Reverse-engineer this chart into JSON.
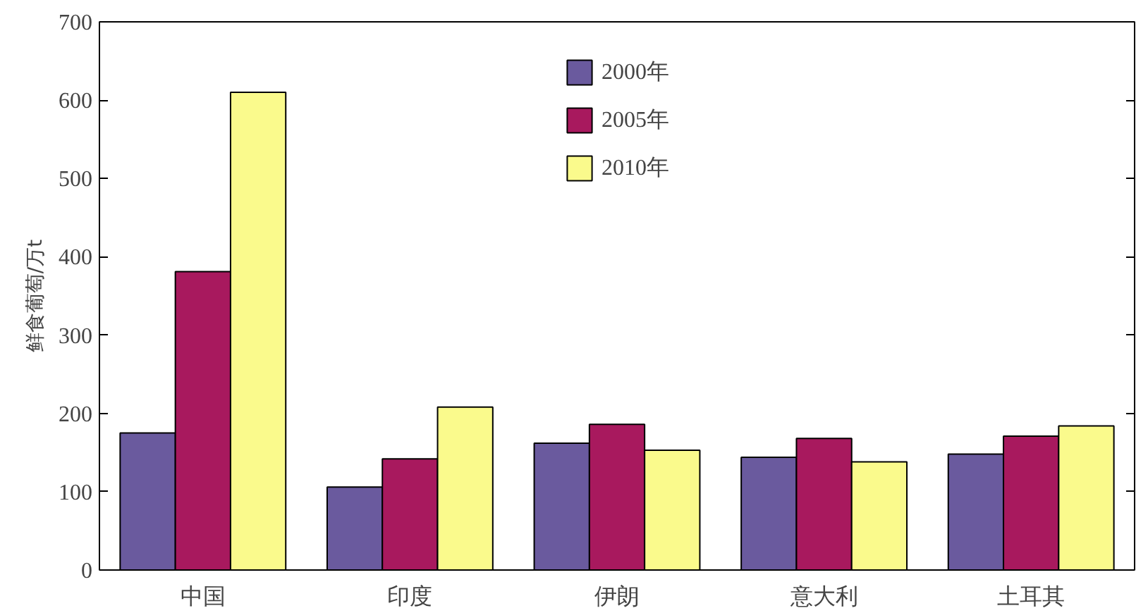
{
  "chart_data": {
    "type": "bar",
    "ylabel": "鲜食葡萄/万t",
    "categories": [
      "中国",
      "印度",
      "伊朗",
      "意大利",
      "土耳其"
    ],
    "series": [
      {
        "name": "2000年",
        "color": "#6a5a9e",
        "values": [
          175,
          106,
          162,
          144,
          148
        ]
      },
      {
        "name": "2005年",
        "color": "#a8195e",
        "values": [
          381,
          142,
          186,
          168,
          171
        ]
      },
      {
        "name": "2010年",
        "color": "#fafa8c",
        "values": [
          610,
          208,
          153,
          138,
          184
        ]
      }
    ],
    "ylim": [
      0,
      700
    ],
    "yticks": [
      0,
      100,
      200,
      300,
      400,
      500,
      600,
      700
    ],
    "grid": false,
    "legend": "top"
  }
}
